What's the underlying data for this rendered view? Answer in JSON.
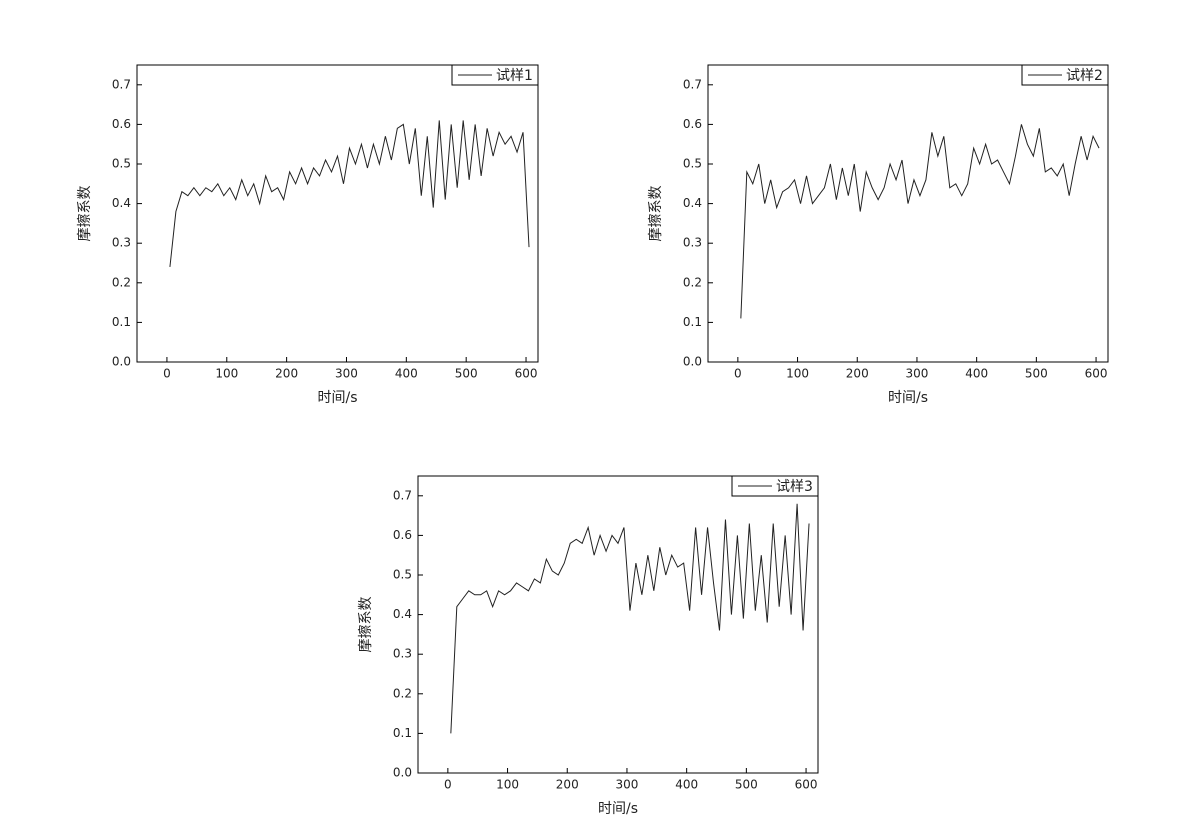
{
  "chart_data": [
    {
      "type": "line",
      "xlabel": "时间/s",
      "ylabel": "摩擦系数",
      "xlim": [
        -50,
        620
      ],
      "ylim": [
        0,
        0.75
      ],
      "xticks": [
        0,
        100,
        200,
        300,
        400,
        500,
        600
      ],
      "yticks": [
        {
          "value": 0,
          "label": "0.0"
        },
        0.1,
        0.2,
        0.3,
        0.4,
        0.5,
        0.6,
        0.7
      ],
      "legend": "top-right",
      "x": [
        5,
        15,
        25,
        35,
        45,
        55,
        65,
        75,
        85,
        95,
        105,
        115,
        125,
        135,
        145,
        155,
        165,
        175,
        185,
        195,
        205,
        215,
        225,
        235,
        245,
        255,
        265,
        275,
        285,
        295,
        305,
        315,
        325,
        335,
        345,
        355,
        365,
        375,
        385,
        395,
        405,
        415,
        425,
        435,
        445,
        455,
        465,
        475,
        485,
        495,
        505,
        515,
        525,
        535,
        545,
        555,
        565,
        575,
        585,
        595,
        605
      ],
      "series": [
        {
          "name": "试样1",
          "color": "#222222",
          "values": [
            0.24,
            0.38,
            0.43,
            0.42,
            0.44,
            0.42,
            0.44,
            0.43,
            0.45,
            0.42,
            0.44,
            0.41,
            0.46,
            0.42,
            0.45,
            0.4,
            0.47,
            0.43,
            0.44,
            0.41,
            0.48,
            0.45,
            0.49,
            0.45,
            0.49,
            0.47,
            0.51,
            0.48,
            0.52,
            0.45,
            0.54,
            0.5,
            0.55,
            0.49,
            0.55,
            0.5,
            0.57,
            0.51,
            0.59,
            0.6,
            0.5,
            0.59,
            0.42,
            0.57,
            0.39,
            0.61,
            0.41,
            0.6,
            0.44,
            0.61,
            0.46,
            0.6,
            0.47,
            0.59,
            0.52,
            0.58,
            0.55,
            0.57,
            0.53,
            0.58,
            0.29
          ]
        }
      ]
    },
    {
      "type": "line",
      "xlabel": "时间/s",
      "ylabel": "摩擦系数",
      "xlim": [
        -50,
        620
      ],
      "ylim": [
        0,
        0.75
      ],
      "xticks": [
        0,
        100,
        200,
        300,
        400,
        500,
        600
      ],
      "yticks": [
        {
          "value": 0,
          "label": "0.0"
        },
        0.1,
        0.2,
        0.3,
        0.4,
        0.5,
        0.6,
        0.7
      ],
      "legend": "top-right",
      "x": [
        5,
        15,
        25,
        35,
        45,
        55,
        65,
        75,
        85,
        95,
        105,
        115,
        125,
        135,
        145,
        155,
        165,
        175,
        185,
        195,
        205,
        215,
        225,
        235,
        245,
        255,
        265,
        275,
        285,
        295,
        305,
        315,
        325,
        335,
        345,
        355,
        365,
        375,
        385,
        395,
        405,
        415,
        425,
        435,
        445,
        455,
        465,
        475,
        485,
        495,
        505,
        515,
        525,
        535,
        545,
        555,
        565,
        575,
        585,
        595,
        605
      ],
      "series": [
        {
          "name": "试样2",
          "color": "#222222",
          "values": [
            0.11,
            0.48,
            0.45,
            0.5,
            0.4,
            0.46,
            0.39,
            0.43,
            0.44,
            0.46,
            0.4,
            0.47,
            0.4,
            0.42,
            0.44,
            0.5,
            0.41,
            0.49,
            0.42,
            0.5,
            0.38,
            0.48,
            0.44,
            0.41,
            0.44,
            0.5,
            0.46,
            0.51,
            0.4,
            0.46,
            0.42,
            0.46,
            0.58,
            0.52,
            0.57,
            0.44,
            0.45,
            0.42,
            0.45,
            0.54,
            0.5,
            0.55,
            0.5,
            0.51,
            0.48,
            0.45,
            0.52,
            0.6,
            0.55,
            0.52,
            0.59,
            0.48,
            0.49,
            0.47,
            0.5,
            0.42,
            0.5,
            0.57,
            0.51,
            0.57,
            0.54
          ]
        }
      ]
    },
    {
      "type": "line",
      "xlabel": "时间/s",
      "ylabel": "摩擦系数",
      "xlim": [
        -50,
        620
      ],
      "ylim": [
        0,
        0.75
      ],
      "xticks": [
        0,
        100,
        200,
        300,
        400,
        500,
        600
      ],
      "yticks": [
        {
          "value": 0,
          "label": "0.0"
        },
        0.1,
        0.2,
        0.3,
        0.4,
        0.5,
        0.6,
        0.7
      ],
      "legend": "top-right",
      "x": [
        5,
        15,
        25,
        35,
        45,
        55,
        65,
        75,
        85,
        95,
        105,
        115,
        125,
        135,
        145,
        155,
        165,
        175,
        185,
        195,
        205,
        215,
        225,
        235,
        245,
        255,
        265,
        275,
        285,
        295,
        305,
        315,
        325,
        335,
        345,
        355,
        365,
        375,
        385,
        395,
        405,
        415,
        425,
        435,
        445,
        455,
        465,
        475,
        485,
        495,
        505,
        515,
        525,
        535,
        545,
        555,
        565,
        575,
        585,
        595,
        605
      ],
      "series": [
        {
          "name": "试样3",
          "color": "#222222",
          "values": [
            0.1,
            0.42,
            0.44,
            0.46,
            0.45,
            0.45,
            0.46,
            0.42,
            0.46,
            0.45,
            0.46,
            0.48,
            0.47,
            0.46,
            0.49,
            0.48,
            0.54,
            0.51,
            0.5,
            0.53,
            0.58,
            0.59,
            0.58,
            0.62,
            0.55,
            0.6,
            0.56,
            0.6,
            0.58,
            0.62,
            0.41,
            0.53,
            0.45,
            0.55,
            0.46,
            0.57,
            0.5,
            0.55,
            0.52,
            0.53,
            0.41,
            0.62,
            0.45,
            0.62,
            0.48,
            0.36,
            0.64,
            0.4,
            0.6,
            0.39,
            0.63,
            0.41,
            0.55,
            0.38,
            0.63,
            0.42,
            0.6,
            0.4,
            0.68,
            0.36,
            0.63
          ]
        }
      ]
    }
  ]
}
